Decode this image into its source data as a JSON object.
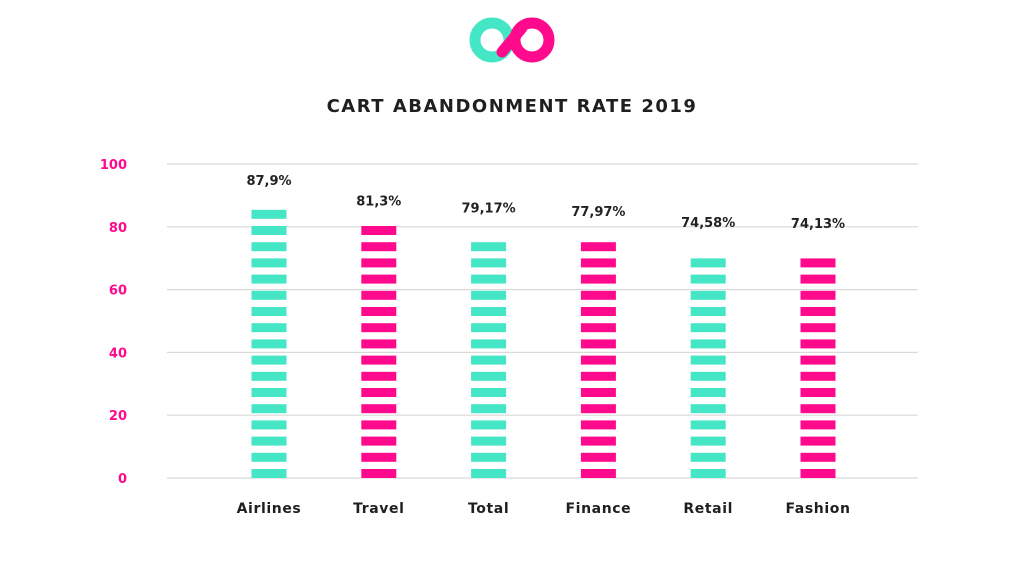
{
  "logo": {
    "name": "infinity-logo",
    "colors": [
      "#45e6c6",
      "#ff0a8c"
    ]
  },
  "chart_data": {
    "type": "bar",
    "title": "CART ABANDONMENT RATE 2019",
    "xlabel": "",
    "ylabel": "",
    "ylim": [
      0,
      100
    ],
    "yticks": [
      0,
      20,
      40,
      60,
      80,
      100
    ],
    "grid": true,
    "categories": [
      "Airlines",
      "Travel",
      "Total",
      "Finance",
      "Retail",
      "Fashion"
    ],
    "values": [
      87.9,
      81.3,
      79.17,
      77.97,
      74.58,
      74.13
    ],
    "value_labels": [
      "87,9%",
      "81,3%",
      "79,17%",
      "77,97%",
      "74,58%",
      "74,13%"
    ],
    "bar_colors": [
      "#45e6c6",
      "#ff0a8c",
      "#45e6c6",
      "#ff0a8c",
      "#45e6c6",
      "#ff0a8c"
    ],
    "bar_style": "dashed-stripes",
    "tick_color": "#ff0a8c"
  }
}
